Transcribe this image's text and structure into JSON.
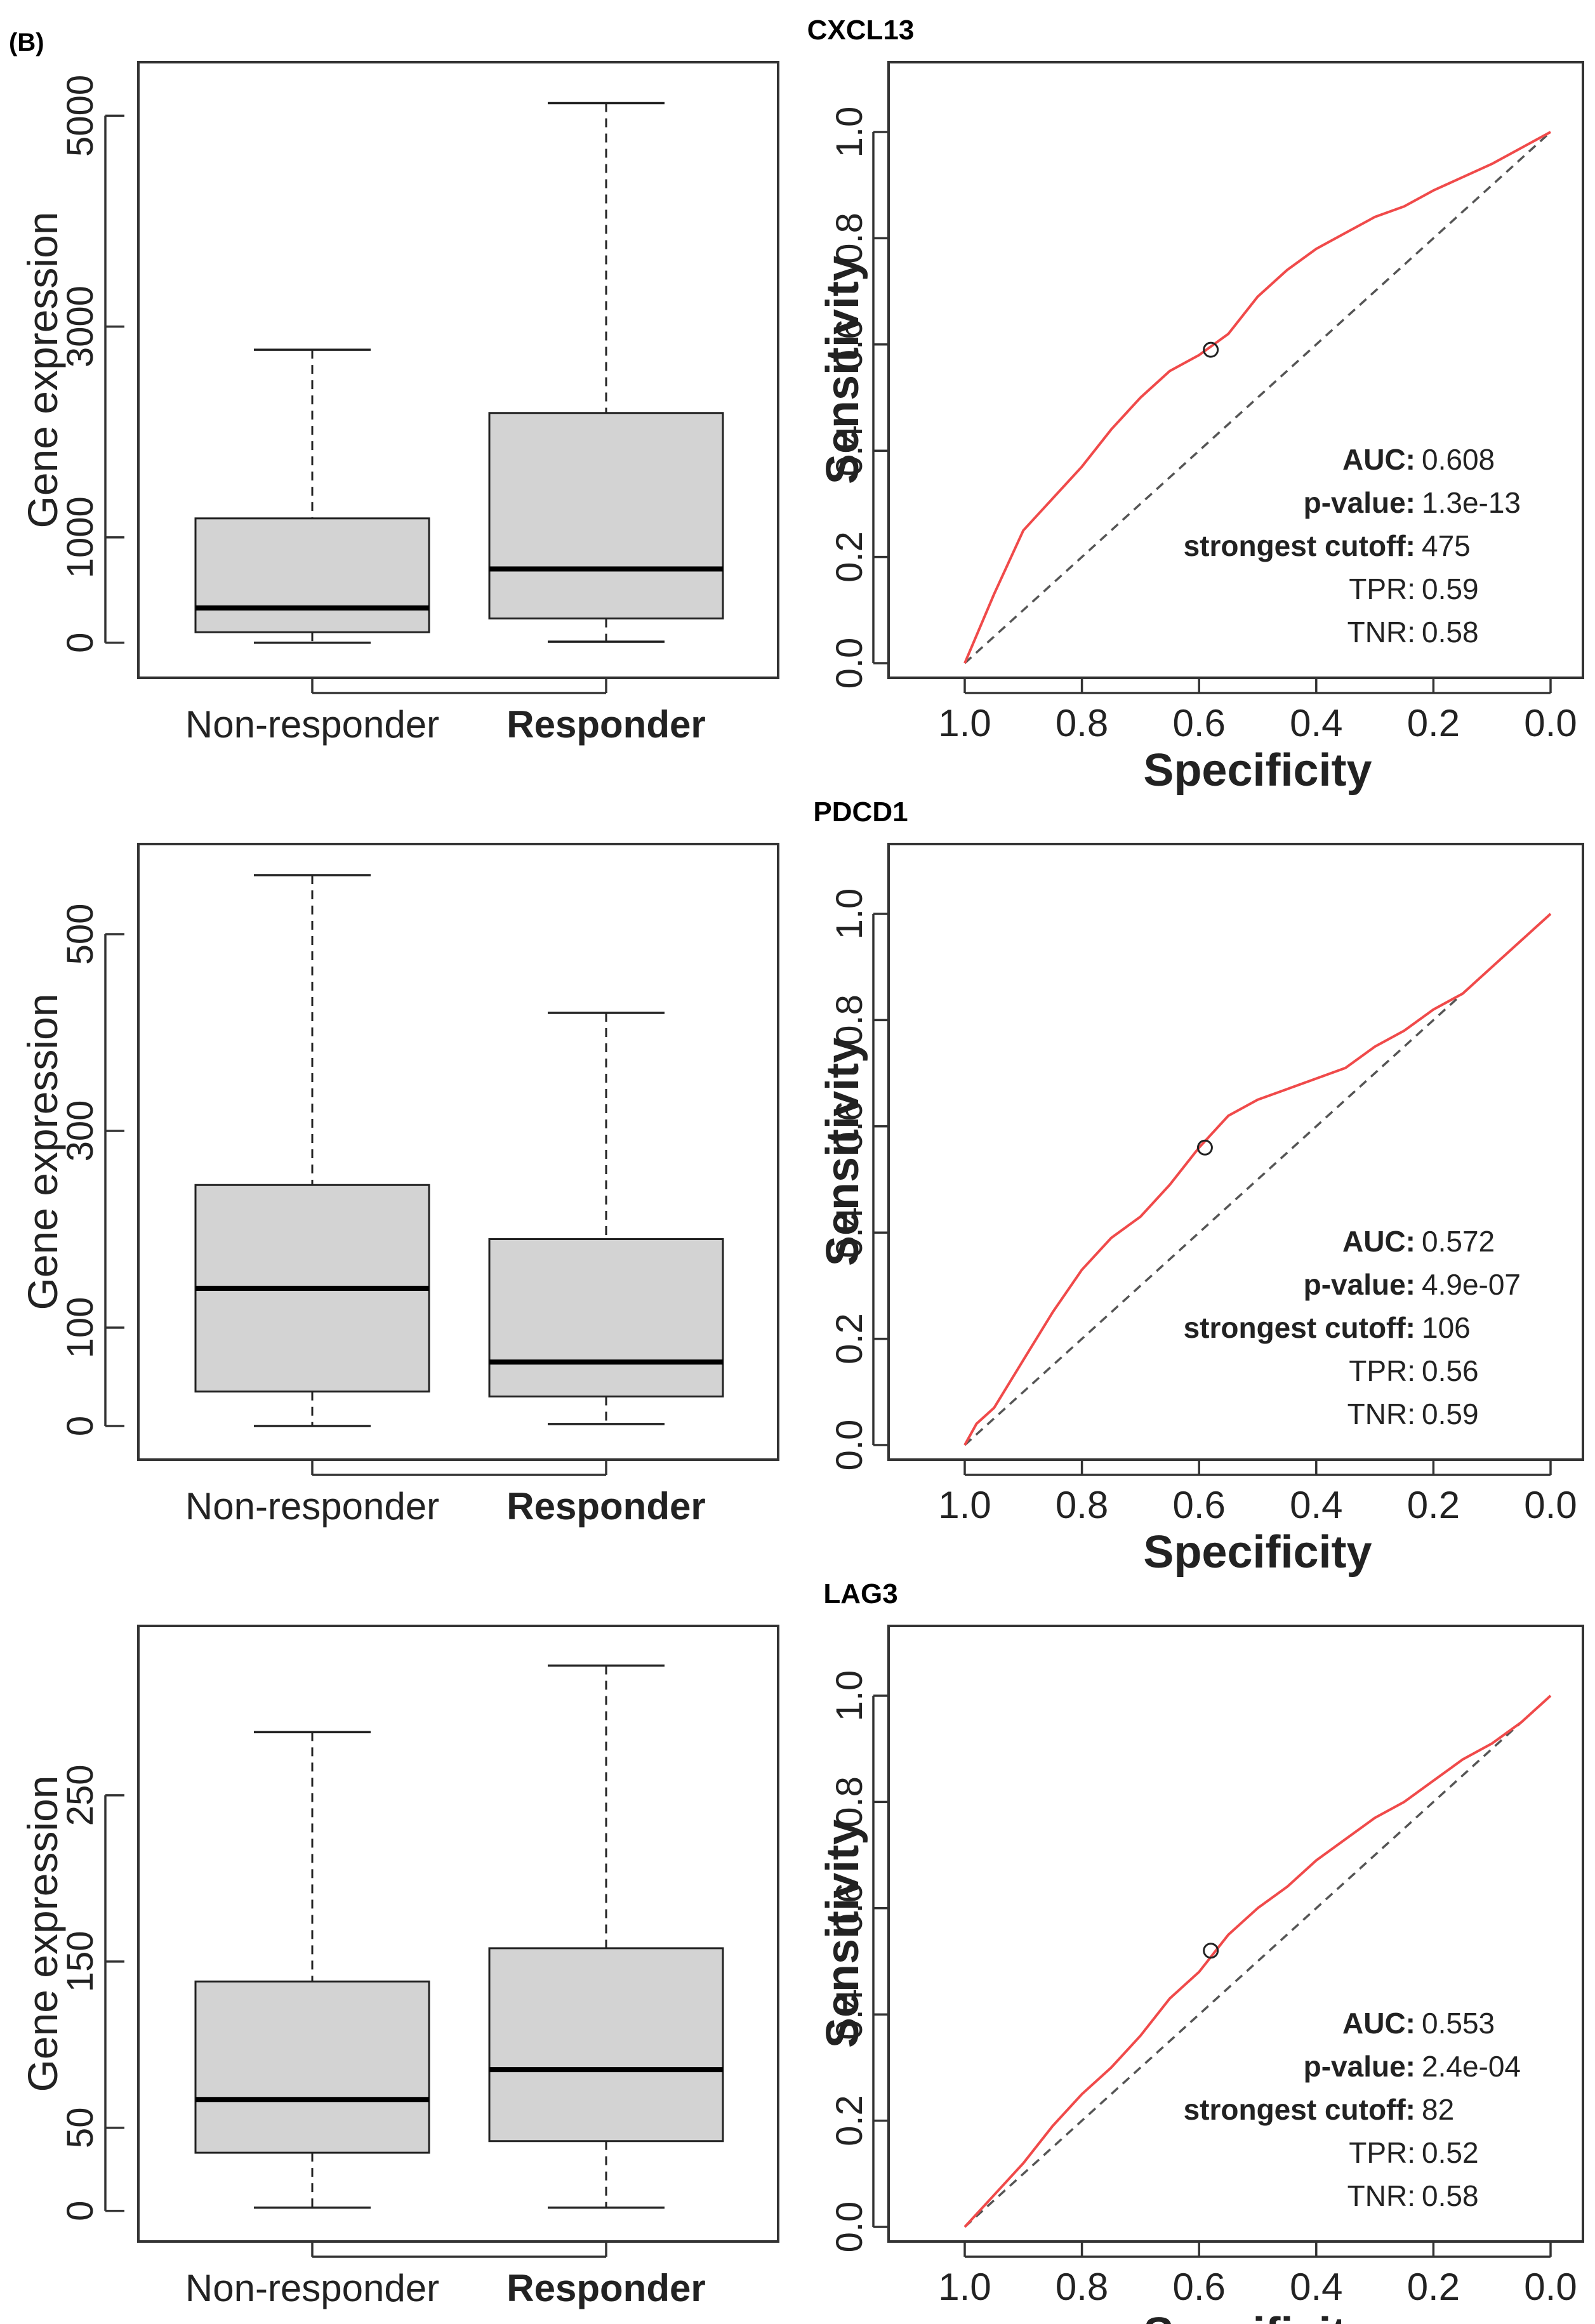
{
  "figure": {
    "panel_tag": "(B)"
  },
  "chart_data": [
    {
      "title": "CXCL13",
      "box": {
        "type": "box",
        "categories": [
          "Non-responder",
          "Responder"
        ],
        "category_bold": [
          false,
          true
        ],
        "ylabel": "Gene expression",
        "yticks": [
          0,
          1000,
          3000,
          5000
        ],
        "ylim": [
          -200,
          5400
        ],
        "boxes": [
          {
            "name": "Non-responder",
            "min": 0,
            "q1": 100,
            "median": 330,
            "q3": 1180,
            "max": 2780
          },
          {
            "name": "Responder",
            "min": 10,
            "q1": 230,
            "median": 700,
            "q3": 2180,
            "max": 5120
          }
        ]
      },
      "roc": {
        "type": "line",
        "xlabel": "Specificity",
        "ylabel": "Sensitivity",
        "xlim": [
          1.0,
          0.0
        ],
        "ylim": [
          0.0,
          1.0
        ],
        "ticks": [
          1.0,
          0.8,
          0.6,
          0.4,
          0.2,
          0.0
        ],
        "tick_labels": [
          "1.0",
          "0.8",
          "0.6",
          "0.4",
          "0.2",
          "0.0"
        ],
        "curve": [
          [
            1.0,
            0.0
          ],
          [
            0.95,
            0.13
          ],
          [
            0.9,
            0.25
          ],
          [
            0.85,
            0.31
          ],
          [
            0.8,
            0.37
          ],
          [
            0.75,
            0.44
          ],
          [
            0.7,
            0.5
          ],
          [
            0.65,
            0.55
          ],
          [
            0.6,
            0.58
          ],
          [
            0.55,
            0.62
          ],
          [
            0.5,
            0.69
          ],
          [
            0.45,
            0.74
          ],
          [
            0.4,
            0.78
          ],
          [
            0.35,
            0.81
          ],
          [
            0.3,
            0.84
          ],
          [
            0.25,
            0.86
          ],
          [
            0.2,
            0.89
          ],
          [
            0.1,
            0.94
          ],
          [
            0.05,
            0.97
          ],
          [
            0.0,
            1.0
          ]
        ],
        "cutoff_point": [
          0.58,
          0.59
        ],
        "stats": [
          {
            "label": "AUC:",
            "value": "0.608",
            "bold": true
          },
          {
            "label": "p-value:",
            "value": "1.3e-13",
            "bold": true
          },
          {
            "label": "strongest cutoff:",
            "value": "475",
            "bold": true
          },
          {
            "label": "TPR:",
            "value": "0.59",
            "bold": false
          },
          {
            "label": "TNR:",
            "value": "0.58",
            "bold": false
          }
        ]
      }
    },
    {
      "title": "PDCD1",
      "box": {
        "type": "box",
        "categories": [
          "Non-responder",
          "Responder"
        ],
        "category_bold": [
          false,
          true
        ],
        "ylabel": "Gene expression",
        "yticks": [
          0,
          100,
          300,
          500
        ],
        "ylim": [
          -20,
          580
        ],
        "boxes": [
          {
            "name": "Non-responder",
            "min": 0,
            "q1": 35,
            "median": 140,
            "q3": 245,
            "max": 560
          },
          {
            "name": "Responder",
            "min": 2,
            "q1": 30,
            "median": 65,
            "q3": 190,
            "max": 420
          }
        ]
      },
      "roc": {
        "type": "line",
        "xlabel": "Specificity",
        "ylabel": "Sensitivity",
        "xlim": [
          1.0,
          0.0
        ],
        "ylim": [
          0.0,
          1.0
        ],
        "ticks": [
          1.0,
          0.8,
          0.6,
          0.4,
          0.2,
          0.0
        ],
        "tick_labels": [
          "1.0",
          "0.8",
          "0.6",
          "0.4",
          "0.2",
          "0.0"
        ],
        "curve": [
          [
            1.0,
            0.0
          ],
          [
            0.98,
            0.04
          ],
          [
            0.95,
            0.07
          ],
          [
            0.9,
            0.16
          ],
          [
            0.85,
            0.25
          ],
          [
            0.8,
            0.33
          ],
          [
            0.75,
            0.39
          ],
          [
            0.7,
            0.43
          ],
          [
            0.65,
            0.49
          ],
          [
            0.6,
            0.56
          ],
          [
            0.55,
            0.62
          ],
          [
            0.5,
            0.65
          ],
          [
            0.45,
            0.67
          ],
          [
            0.4,
            0.69
          ],
          [
            0.35,
            0.71
          ],
          [
            0.3,
            0.75
          ],
          [
            0.25,
            0.78
          ],
          [
            0.2,
            0.82
          ],
          [
            0.15,
            0.85
          ],
          [
            0.1,
            0.9
          ],
          [
            0.05,
            0.95
          ],
          [
            0.0,
            1.0
          ]
        ],
        "cutoff_point": [
          0.59,
          0.56
        ],
        "stats": [
          {
            "label": "AUC:",
            "value": "0.572",
            "bold": true
          },
          {
            "label": "p-value:",
            "value": "4.9e-07",
            "bold": true
          },
          {
            "label": "strongest cutoff:",
            "value": "106",
            "bold": true
          },
          {
            "label": "TPR:",
            "value": "0.56",
            "bold": false
          },
          {
            "label": "TNR:",
            "value": "0.59",
            "bold": false
          }
        ]
      }
    },
    {
      "title": "LAG3",
      "box": {
        "type": "box",
        "categories": [
          "Non-responder",
          "Responder"
        ],
        "category_bold": [
          false,
          true
        ],
        "ylabel": "Gene expression",
        "yticks": [
          0,
          50,
          150,
          250
        ],
        "ylim": [
          -10,
          345
        ],
        "boxes": [
          {
            "name": "Non-responder",
            "min": 2,
            "q1": 35,
            "median": 67,
            "q3": 138,
            "max": 288
          },
          {
            "name": "Responder",
            "min": 2,
            "q1": 42,
            "median": 85,
            "q3": 158,
            "max": 328
          }
        ]
      },
      "roc": {
        "type": "line",
        "xlabel": "Specificity",
        "ylabel": "Sensitivity",
        "xlim": [
          1.0,
          0.0
        ],
        "ylim": [
          0.0,
          1.0
        ],
        "ticks": [
          1.0,
          0.8,
          0.6,
          0.4,
          0.2,
          0.0
        ],
        "tick_labels": [
          "1.0",
          "0.8",
          "0.6",
          "0.4",
          "0.2",
          "0.0"
        ],
        "curve": [
          [
            1.0,
            0.0
          ],
          [
            0.95,
            0.06
          ],
          [
            0.9,
            0.12
          ],
          [
            0.85,
            0.19
          ],
          [
            0.8,
            0.25
          ],
          [
            0.75,
            0.3
          ],
          [
            0.7,
            0.36
          ],
          [
            0.65,
            0.43
          ],
          [
            0.6,
            0.48
          ],
          [
            0.55,
            0.55
          ],
          [
            0.5,
            0.6
          ],
          [
            0.45,
            0.64
          ],
          [
            0.4,
            0.69
          ],
          [
            0.35,
            0.73
          ],
          [
            0.3,
            0.77
          ],
          [
            0.25,
            0.8
          ],
          [
            0.2,
            0.84
          ],
          [
            0.15,
            0.88
          ],
          [
            0.1,
            0.91
          ],
          [
            0.05,
            0.95
          ],
          [
            0.0,
            1.0
          ]
        ],
        "cutoff_point": [
          0.58,
          0.52
        ],
        "stats": [
          {
            "label": "AUC:",
            "value": "0.553",
            "bold": true
          },
          {
            "label": "p-value:",
            "value": "2.4e-04",
            "bold": true
          },
          {
            "label": "strongest cutoff:",
            "value": "82",
            "bold": true
          },
          {
            "label": "TPR:",
            "value": "0.52",
            "bold": false
          },
          {
            "label": "TNR:",
            "value": "0.58",
            "bold": false
          }
        ]
      }
    }
  ]
}
